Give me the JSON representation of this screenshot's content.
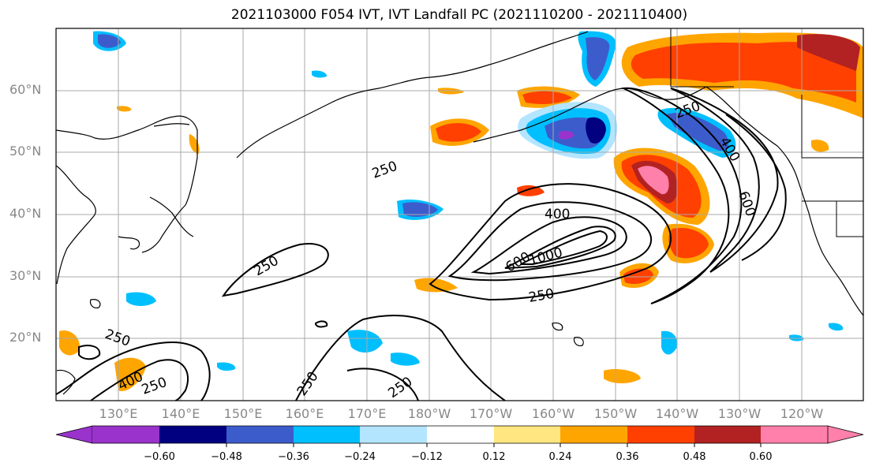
{
  "title": "2021103000 F054 IVT, IVT Landfall PC (2021110200 - 2021110400)",
  "lat_labels": [
    "60°N",
    "50°N",
    "40°N",
    "30°N",
    "20°N"
  ],
  "lon_labels": [
    "130°E",
    "140°E",
    "150°E",
    "160°E",
    "170°E",
    "180°W",
    "170°W",
    "160°W",
    "150°W",
    "140°W",
    "130°W",
    "120°W"
  ],
  "contour_labels": [
    "250",
    "250",
    "400",
    "600",
    "1000",
    "250",
    "250",
    "400",
    "250",
    "600",
    "400",
    "250",
    "250",
    "250"
  ],
  "colorbar": {
    "colors": [
      "#9933cc",
      "#000080",
      "#3d5ccc",
      "#00bfff",
      "#b3e5ff",
      "#ffffff",
      "#ffe680",
      "#ffa500",
      "#ff4000",
      "#b22222",
      "#ff80aa"
    ],
    "tick_labels": [
      "−0.60",
      "−0.48",
      "−0.36",
      "−0.24",
      "−0.12",
      "0.12",
      "0.24",
      "0.36",
      "0.48",
      "0.60"
    ]
  }
}
